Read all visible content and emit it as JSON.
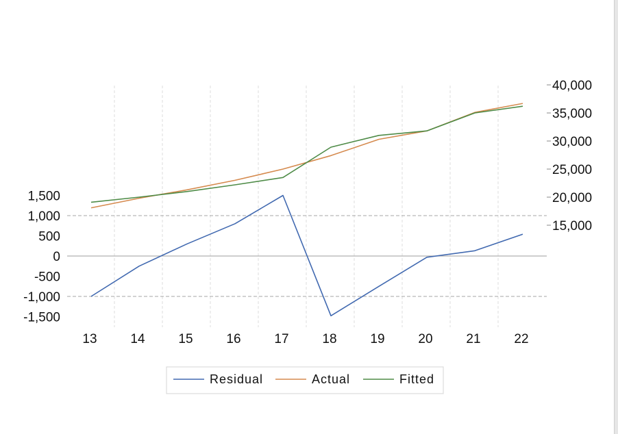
{
  "chart_data": {
    "type": "line",
    "x": [
      13,
      14,
      15,
      16,
      17,
      18,
      19,
      20,
      21,
      22
    ],
    "series": [
      {
        "name": "Residual",
        "axis": "left",
        "color": "#4169b0",
        "values": [
          -1000,
          -250,
          300,
          800,
          1500,
          -1480,
          -750,
          -30,
          130,
          540
        ]
      },
      {
        "name": "Actual",
        "axis": "right",
        "color": "#d58a4e",
        "values": [
          18100,
          19800,
          21300,
          23000,
          25000,
          27400,
          30300,
          31800,
          35100,
          36700
        ]
      },
      {
        "name": "Fitted",
        "axis": "right",
        "color": "#4e8b47",
        "values": [
          19100,
          20000,
          21000,
          22200,
          23500,
          28900,
          31000,
          31800,
          35000,
          36200
        ]
      }
    ],
    "left_axis": {
      "ticks": [
        -1500,
        -1000,
        -500,
        0,
        500,
        1000,
        1500
      ],
      "tick_labels": [
        "-1,500",
        "-1,000",
        "-500",
        "0",
        "500",
        "1,000",
        "1,500"
      ]
    },
    "right_axis": {
      "ticks": [
        15000,
        20000,
        25000,
        30000,
        35000,
        40000
      ],
      "tick_labels": [
        "15,000",
        "20,000",
        "25,000",
        "30,000",
        "35,000",
        "40,000"
      ]
    },
    "x_tick_labels": [
      "13",
      "14",
      "15",
      "16",
      "17",
      "18",
      "19",
      "20",
      "21",
      "22"
    ],
    "grid": true,
    "legend_position": "bottom",
    "legend": [
      "Residual",
      "Actual",
      "Fitted"
    ]
  }
}
